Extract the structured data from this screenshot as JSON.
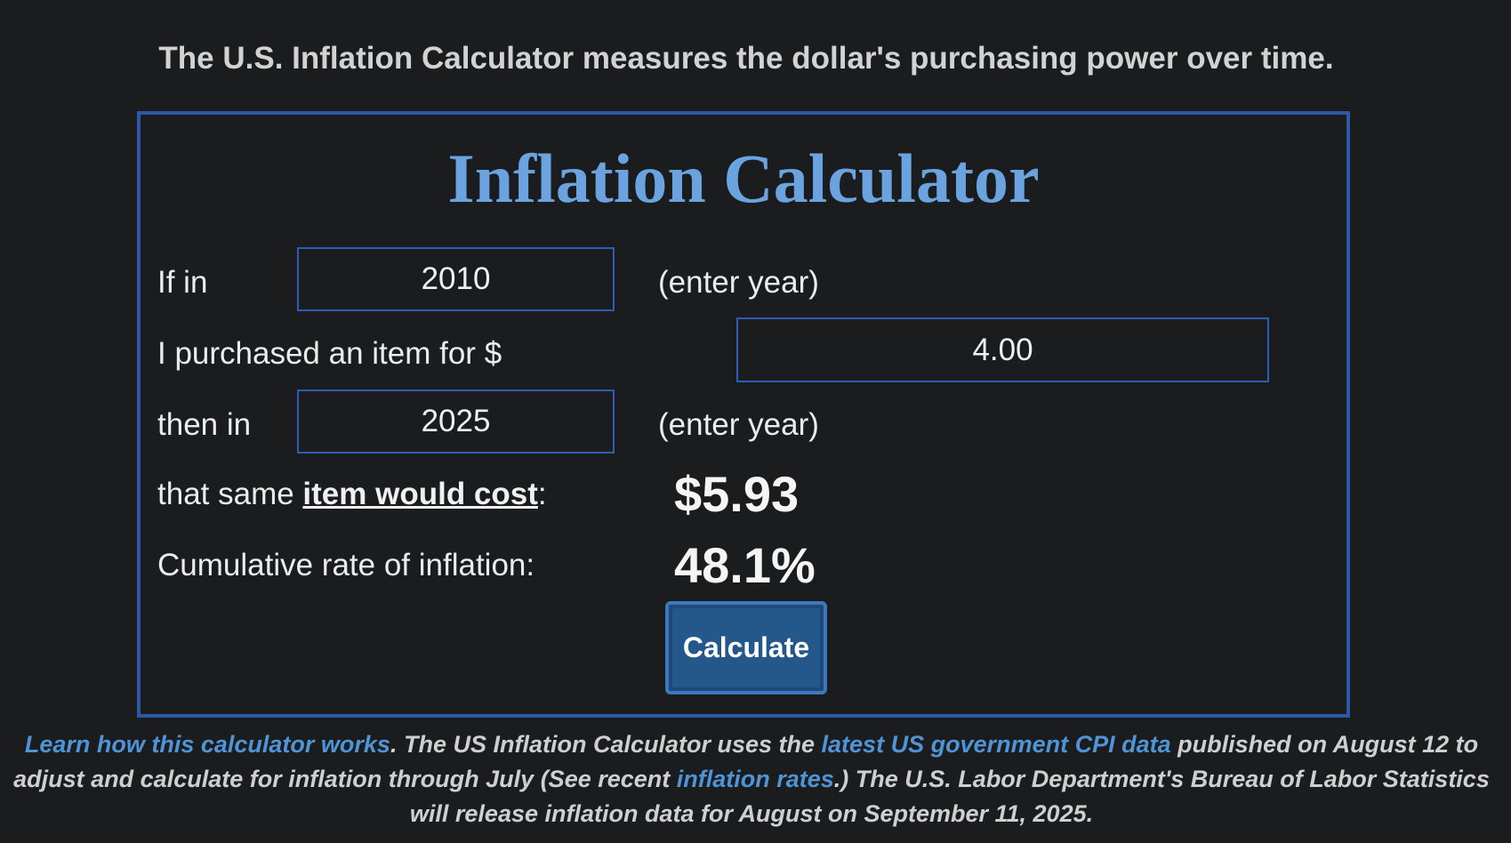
{
  "header": {
    "tagline": "The U.S. Inflation Calculator measures the dollar's purchasing power over time."
  },
  "calculator": {
    "title": "Inflation Calculator",
    "row1": {
      "label": "If in",
      "value": "2010",
      "hint": "(enter year)"
    },
    "row2": {
      "label": "I purchased an item for $",
      "value": "4.00"
    },
    "row3": {
      "label": "then in",
      "value": "2025",
      "hint": "(enter year)"
    },
    "row4": {
      "label_prefix": "that same ",
      "label_link": "item would cost",
      "label_suffix": ":",
      "result": "$5.93"
    },
    "row5": {
      "label": "Cumulative rate of inflation:",
      "result": "48.1%"
    },
    "button_label": "Calculate"
  },
  "footnote": {
    "link1": "Learn how this calculator works",
    "text1": ". The US Inflation Calculator uses the ",
    "link2": "latest US government CPI data",
    "text2": " published on August 12 to adjust and calculate for inflation through July (See recent ",
    "link3": "inflation rates",
    "text3": ".) The U.S. Labor Department's Bureau of Labor Statistics will release inflation data for August on September 11, 2025."
  },
  "colors": {
    "background": "#1b1c1e",
    "accent": "#2e58a6",
    "title": "#6aa3e0",
    "link": "#4e94d6",
    "button": "#24578a"
  }
}
